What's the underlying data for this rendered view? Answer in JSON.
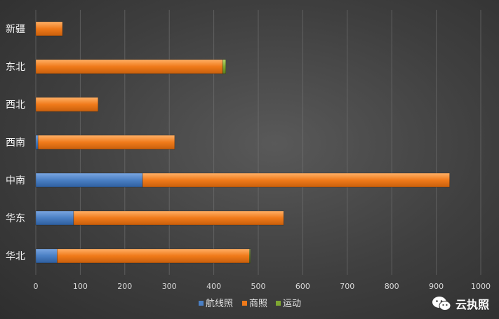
{
  "chart_data": {
    "type": "bar",
    "orientation": "horizontal",
    "stacked": true,
    "categories": [
      "新疆",
      "东北",
      "西北",
      "西南",
      "中南",
      "华东",
      "华北"
    ],
    "series": [
      {
        "name": "航线照",
        "color": "#4a7fc4",
        "values": [
          0,
          0,
          0,
          5,
          240,
          85,
          48
        ]
      },
      {
        "name": "商照",
        "color": "#f07a1a",
        "values": [
          60,
          420,
          140,
          307,
          690,
          472,
          432
        ]
      },
      {
        "name": "运动",
        "color": "#7fa832",
        "values": [
          0,
          7,
          0,
          0,
          0,
          0,
          2
        ]
      }
    ],
    "xlim": [
      0,
      1000
    ],
    "xticks": [
      0,
      100,
      200,
      300,
      400,
      500,
      600,
      700,
      800,
      900,
      1000
    ],
    "grid": true,
    "legend_position": "bottom"
  },
  "watermark": {
    "text": "云执照",
    "icon": "wechat-icon"
  }
}
